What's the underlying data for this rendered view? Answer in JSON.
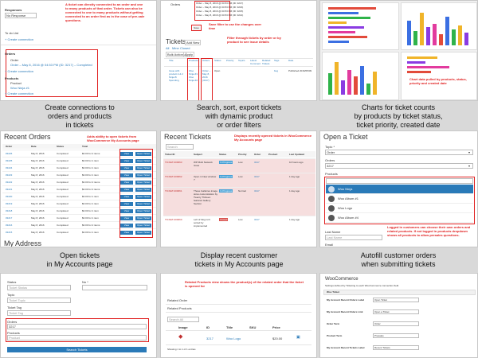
{
  "captions": {
    "c1": [
      "Create connections to",
      "orders and products",
      "in tickets"
    ],
    "c2": [
      "Search, sort, export tickets",
      "with dynamic product",
      "or order filters"
    ],
    "c3": [
      "Charts for ticket counts",
      "by products by ticket status,",
      "ticket priority, created date"
    ],
    "c4": [
      "Open tickets",
      "in My Accounts page"
    ],
    "c5": [
      "Display recent customer",
      "tickets in My Accounts page"
    ],
    "c6": [
      "Autofill customer orders",
      "when submitting tickets"
    ]
  },
  "p1": {
    "responses": "Responses",
    "resp_value": "No Response",
    "to_list": "To do List",
    "create_connection": "+ Create connection",
    "orders": "Orders",
    "order_label": "Order",
    "order_value": "Order – May 8, 2016 @ 04:53 PM (ID: 3217) – Completed",
    "products": "Products",
    "product_label": "Product",
    "product_value": "Woo Ninja #1",
    "note": "A ticket can directly connected to an order and one to many products of that order. Tickets can also be connected to one to many products without getting connected to an order first as in the case of pre-sale questions."
  },
  "p2": {
    "orders_label": "Orders",
    "dd_items": [
      "Order – May 8, 2016 @ 04:53 PM (ID: 3217)",
      "Order – May 8, 2016 @ 04:53 PM (ID: 3216)",
      "Order – May 8, 2016 @ 04:53 PM (ID: 3215)",
      "Order – May 8, 2016 @ 04:53 PM (ID: 3214)"
    ],
    "save_label": "Save",
    "note_save": "Save filter to use the changes over time",
    "note_filter": "Filter through tickets by order or by product to see issue details",
    "tickets_title": "Tickets",
    "add_new": "Add New",
    "tab_all": "All",
    "tab_mine": "Mine",
    "tab_closed": "Closed",
    "bulk": "Bulk Actions",
    "apply": "Apply",
    "headers": [
      "Title",
      "Products",
      "Orders",
      "Status",
      "Priority",
      "Topics",
      "Latest Comment",
      "Related Tickets",
      "Tags",
      "Date"
    ],
    "row_title": "Issue with product A & 2 Ninja B Spending",
    "row_products": "Woo Ninja #1 Woo Ninja #2",
    "row_orders": "Order – May 8, 2016 (3217)",
    "row_status": "Open",
    "row_tags": "bug",
    "row_date": "Published 2016/05/09"
  },
  "p3": {
    "note": "Chart data pulled by products, status, priority and created date"
  },
  "p4": {
    "title": "Recent Orders",
    "note": "Adds ability to open tickets from WooCommerce My Accounts page",
    "headers": [
      "Order",
      "Date",
      "Status",
      "Total",
      ""
    ],
    "orders": [
      {
        "id": "#3226",
        "date": "May 8, 2016",
        "status": "Completed",
        "total": "$0.00 for 2 items"
      },
      {
        "id": "#3225",
        "date": "May 8, 2016",
        "status": "Completed",
        "total": "$0.00 for 1 item"
      },
      {
        "id": "#3224",
        "date": "May 8, 2016",
        "status": "Completed",
        "total": "$0.00 for 1 item"
      },
      {
        "id": "#3223",
        "date": "May 8, 2016",
        "status": "Completed",
        "total": "$0.00 for 1 item"
      },
      {
        "id": "#3222",
        "date": "May 8, 2016",
        "status": "Completed",
        "total": "$0.00 for 2 items"
      },
      {
        "id": "#3221",
        "date": "May 8, 2016",
        "status": "Completed",
        "total": "$0.00 for 2 items"
      },
      {
        "id": "#3220",
        "date": "May 8, 2016",
        "status": "Completed",
        "total": "$0.00 for 1 item"
      },
      {
        "id": "#3219",
        "date": "May 8, 2016",
        "status": "Completed",
        "total": "$0.00 for 1 item"
      },
      {
        "id": "#3218",
        "date": "May 8, 2016",
        "status": "Completed",
        "total": "$0.00 for 1 item"
      },
      {
        "id": "#3217",
        "date": "May 8, 2016",
        "status": "Completed",
        "total": "$0.00 for 1 item"
      },
      {
        "id": "#3216",
        "date": "May 8, 2016",
        "status": "Completed",
        "total": "$0.00 for 2 items"
      },
      {
        "id": "#3215",
        "date": "May 8, 2016",
        "status": "Completed",
        "total": "$0.00 for 1 item"
      }
    ],
    "view_label": "View",
    "open_ticket_label": "Open Ticket",
    "my_address": "My Address"
  },
  "p5": {
    "title": "Recent Tickets",
    "note": "Displays recently opened tickets in WooCommerce My Accounts page",
    "search_placeholder": "Search",
    "headers": [
      "Ticket ID",
      "Subject",
      "Status",
      "Priority",
      "Order",
      "Product",
      "Last Updated"
    ],
    "tickets": [
      {
        "id": "TICKET-000063",
        "subject": "WP Multi Network Issue",
        "status": "In Progress",
        "priority": "Low",
        "order": "3217",
        "updated": "10 hours ago",
        "pink": true
      },
      {
        "id": "TICKET-000062",
        "subject": "Open in New window ?",
        "status": "In Progress",
        "priority": "Low",
        "order": "3217",
        "updated": "1 day ago",
        "pink": true
      },
      {
        "id": "TICKET-000061",
        "subject": "These Galleries image sizes customization by Twenty Thirteen featured Gallery Section",
        "status": "In Progress",
        "priority": "Normal",
        "order": "3217",
        "updated": "1 day ago",
        "pink": true
      },
      {
        "id": "TICKET-000060",
        "subject": "Left of blog isn't sorted by implemented",
        "status": "Closed",
        "priority": "Low",
        "order": "3217",
        "updated": "1 day ago",
        "pink": false
      }
    ]
  },
  "p6": {
    "title": "Open a Ticket",
    "topic_label": "Topic *",
    "topic_value": "Order",
    "orders_label": "Orders",
    "orders_value": "3217",
    "products_label": "Products",
    "product_options": [
      "Woo Ninja",
      "Woo Album #1",
      "Woo Logo",
      "Woo Album #4"
    ],
    "note": "Logged in customers can choose their own orders and related products. If not logged in products dropdown shows all products to allow presales questions.",
    "last_name": "Last Name",
    "last_name_placeholder": "Last Name",
    "email": "Email"
  },
  "p7": {
    "status_label": "Status",
    "status_placeholder": "Ticket Status",
    "no_label": "No *",
    "topic_label": "Topic",
    "topic_placeholder": "Ticket Topic",
    "tags_label": "Ticket Tag",
    "tags_placeholder": "Ticket Tag",
    "orders_label": "Orders",
    "orders_value": "3217",
    "products_label": "Products",
    "products_placeholder": "Product",
    "search_btn": "Search Tickets"
  },
  "p8": {
    "note": "Related Products view shows the product(s) of the related order that the ticket is opened for",
    "related_order": "Related Order",
    "related_products": "Related Products",
    "search_placeholder": "Search All",
    "headers": [
      "Image",
      "ID",
      "Title",
      "SKU",
      "Price",
      ""
    ],
    "product": {
      "id": "3217",
      "title": "Woo Logo",
      "price": "$20.00"
    },
    "showing": "Showing 1 to 1 of 1 entries"
  },
  "p9": {
    "title": "WooCommerce",
    "subtitle": "Settings defined by Ticketing to each WooCommerce connection field.",
    "section": "Woo Ticket",
    "fields": [
      {
        "label": "My Account Recent Orders Label",
        "value": "Open Ticket"
      },
      {
        "label": "My Account Recent Orders Link",
        "value": "Open a Ticket"
      },
      {
        "label": "Order Term",
        "value": "Order"
      },
      {
        "label": "Product Term",
        "value": "Presales"
      },
      {
        "label": "My Account Recent Tickets Label",
        "value": "Recent Tickets"
      }
    ]
  },
  "colors": {
    "red_note": "#e02020",
    "wp_blue": "#2a7ab8",
    "pink_row": "#f6dede",
    "in_progress": "#45a1d7",
    "closed": "#d9534f"
  }
}
